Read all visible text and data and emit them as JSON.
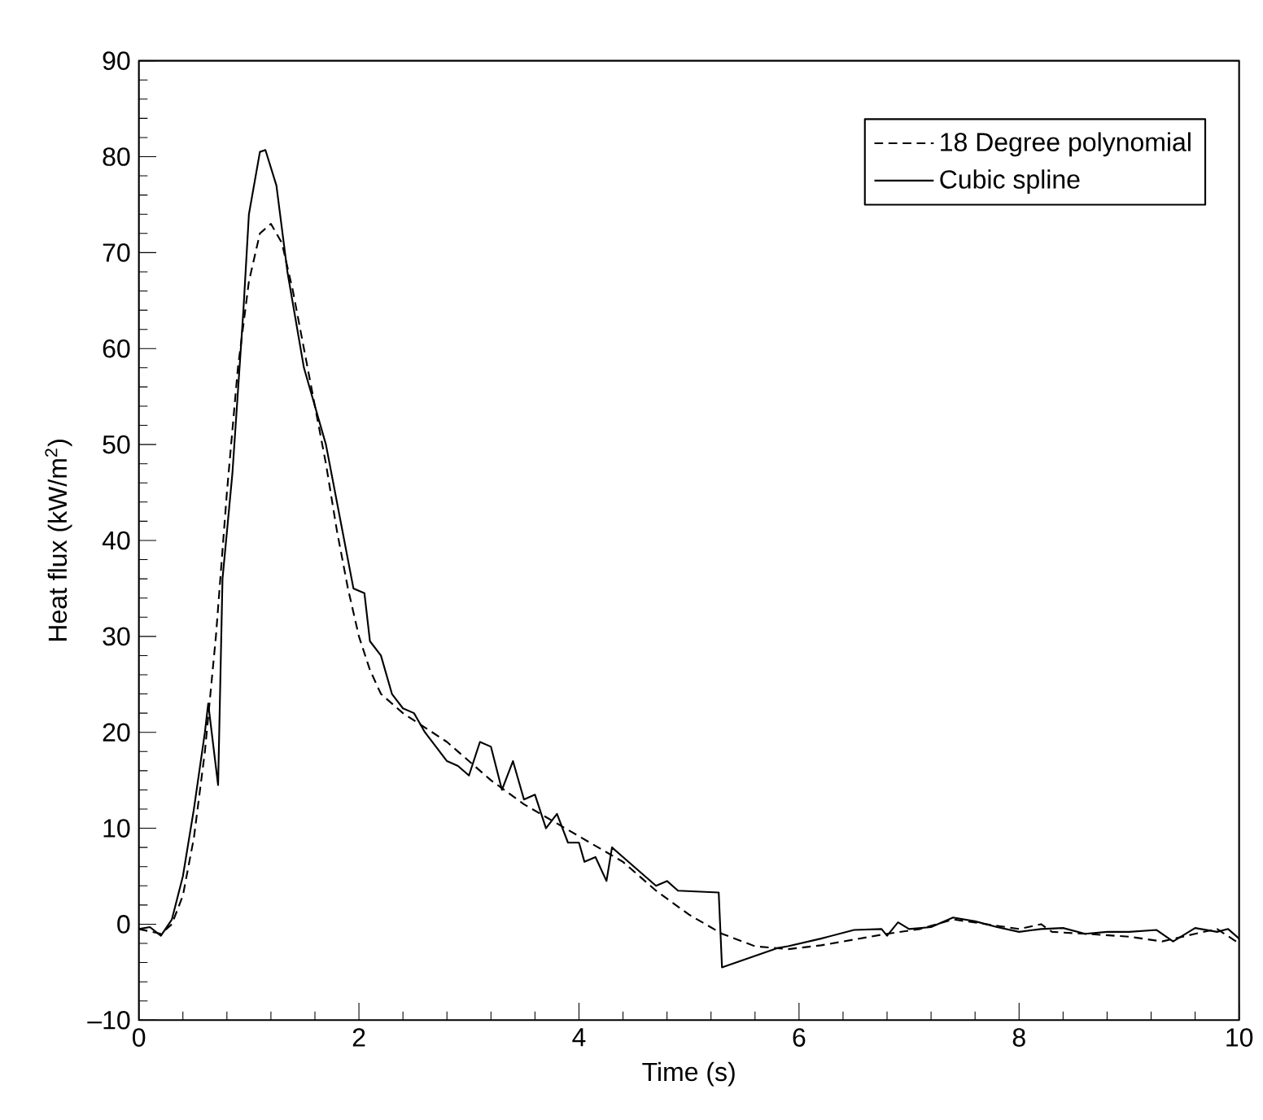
{
  "chart_data": {
    "type": "line",
    "xlabel": "Time (s)",
    "ylabel": "Heat flux (kW/m$^{2}$)",
    "xlim": [
      0,
      10
    ],
    "ylim": [
      -10,
      90
    ],
    "xticks": [
      0,
      2,
      4,
      6,
      8,
      10
    ],
    "yticks": [
      {
        "value": -10,
        "label": "–10"
      },
      0,
      10,
      20,
      30,
      40,
      50,
      60,
      70,
      80,
      90
    ],
    "legend": "top right",
    "grid": false,
    "marker": "none",
    "series": [
      {
        "name": "18 Degree polynomial",
        "color": "#000000",
        "line_style": "dashed",
        "x": [
          0,
          0.2,
          0.3,
          0.4,
          0.5,
          0.6,
          0.7,
          0.8,
          0.9,
          1.0,
          1.1,
          1.2,
          1.3,
          1.4,
          1.5,
          1.6,
          1.7,
          1.8,
          1.9,
          2.0,
          2.1,
          2.2,
          2.4,
          2.6,
          2.8,
          3.0,
          3.2,
          3.5,
          3.8,
          4.1,
          4.4,
          4.7,
          5.0,
          5.3,
          5.6,
          5.9,
          6.2,
          6.5,
          6.8,
          7.1,
          7.4,
          7.7,
          8.0,
          8.2,
          8.3,
          8.6,
          9.0,
          9.3,
          9.6,
          9.8,
          10
        ],
        "values": [
          -0.5,
          -1,
          0,
          3,
          9,
          18,
          30,
          45,
          58,
          67,
          72,
          73,
          71,
          66,
          60,
          54,
          48,
          41,
          35,
          30,
          26.5,
          24,
          22,
          20.5,
          19,
          17,
          15,
          12.5,
          10.5,
          8.5,
          6.5,
          3.5,
          1,
          -1,
          -2.3,
          -2.6,
          -2.2,
          -1.6,
          -1,
          -0.5,
          0.5,
          0,
          -0.5,
          0,
          -0.8,
          -1,
          -1.3,
          -1.8,
          -1,
          -0.5,
          -2
        ]
      },
      {
        "name": "Cubic spline",
        "color": "#000000",
        "line_style": "solid",
        "x": [
          0,
          0.1,
          0.2,
          0.3,
          0.4,
          0.5,
          0.6,
          0.63,
          0.72,
          0.76,
          0.85,
          0.95,
          1.0,
          1.1,
          1.15,
          1.25,
          1.35,
          1.5,
          1.7,
          1.85,
          1.95,
          2.05,
          2.1,
          2.2,
          2.3,
          2.4,
          2.5,
          2.6,
          2.7,
          2.8,
          2.9,
          3.0,
          3.1,
          3.2,
          3.3,
          3.4,
          3.5,
          3.6,
          3.7,
          3.8,
          3.9,
          4.0,
          4.05,
          4.15,
          4.25,
          4.3,
          4.6,
          4.7,
          4.8,
          4.9,
          5.27,
          5.3,
          5.8,
          5.9,
          6.2,
          6.5,
          6.75,
          6.8,
          6.9,
          7.0,
          7.2,
          7.4,
          7.6,
          7.8,
          8.0,
          8.2,
          8.4,
          8.6,
          8.8,
          9.0,
          9.25,
          9.4,
          9.6,
          9.8,
          9.9,
          10
        ],
        "values": [
          -0.5,
          -0.3,
          -1.2,
          0.5,
          5,
          12,
          20,
          23,
          14.5,
          36,
          47,
          64,
          74,
          80.5,
          80.7,
          77,
          68,
          58,
          50,
          41,
          35,
          34.5,
          29.5,
          28,
          24,
          22.5,
          22,
          20,
          18.5,
          17,
          16.5,
          15.5,
          19,
          18.5,
          14,
          17,
          13,
          13.5,
          10,
          11.5,
          8.5,
          8.5,
          6.5,
          7,
          4.5,
          8,
          5,
          4,
          4.5,
          3.5,
          3.3,
          -4.5,
          -2.5,
          -2.3,
          -1.5,
          -0.6,
          -0.5,
          -1.2,
          0.2,
          -0.5,
          -0.3,
          0.7,
          0.3,
          -0.3,
          -0.8,
          -0.5,
          -0.4,
          -1.0,
          -0.8,
          -0.8,
          -0.6,
          -1.8,
          -0.4,
          -0.8,
          -0.5,
          -1.5
        ]
      }
    ]
  }
}
